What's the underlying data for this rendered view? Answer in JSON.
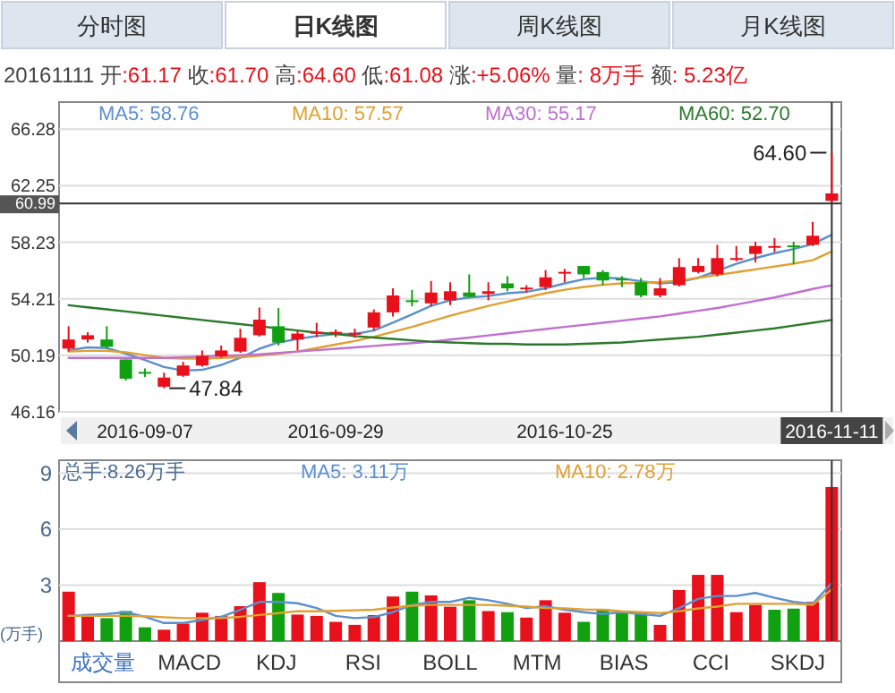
{
  "chart_data": [
    {
      "type": "candlestick",
      "title": "20161111 开:61.17 收:61.70 高:64.60 低:61.08 涨:+5.06% 量: 8万手 额: 5.23亿",
      "categories": [
        null,
        null,
        null,
        null,
        "2016-09-07",
        null,
        null,
        null,
        null,
        null,
        null,
        null,
        null,
        null,
        "2016-09-29",
        null,
        null,
        null,
        null,
        null,
        null,
        null,
        null,
        null,
        null,
        null,
        "2016-10-25",
        null,
        null,
        null,
        null,
        null,
        null,
        null,
        null,
        null,
        null,
        null,
        null,
        null,
        "2016-11-11"
      ],
      "ohlc": [
        [
          50.66,
          52.25,
          50.45,
          51.31
        ],
        [
          51.31,
          51.82,
          51.09,
          51.61
        ],
        [
          51.31,
          52.25,
          50.66,
          50.79
        ],
        [
          49.89,
          49.89,
          48.39,
          48.52
        ],
        [
          49.0,
          49.25,
          48.65,
          48.95
        ],
        [
          47.95,
          48.95,
          47.84,
          48.6
        ],
        [
          48.73,
          49.72,
          48.65,
          49.46
        ],
        [
          49.46,
          50.53,
          49.37,
          50.15
        ],
        [
          50.1,
          50.88,
          50.02,
          50.53
        ],
        [
          50.45,
          52.08,
          50.36,
          51.43
        ],
        [
          51.61,
          53.58,
          51.52,
          52.72
        ],
        [
          52.25,
          53.54,
          50.88,
          51.09
        ],
        [
          51.31,
          51.95,
          50.53,
          51.73
        ],
        [
          51.8,
          52.5,
          51.48,
          51.85
        ],
        [
          51.8,
          52.03,
          51.48,
          51.85
        ],
        [
          51.73,
          52.08,
          51.43,
          51.78
        ],
        [
          52.16,
          53.45,
          51.95,
          53.24
        ],
        [
          53.24,
          54.95,
          52.94,
          54.44
        ],
        [
          54.1,
          54.83,
          53.67,
          54.05
        ],
        [
          53.88,
          55.47,
          53.67,
          54.65
        ],
        [
          54.1,
          55.38,
          53.75,
          54.74
        ],
        [
          54.65,
          55.94,
          54.31,
          54.35
        ],
        [
          54.55,
          55.38,
          54.1,
          54.74
        ],
        [
          55.3,
          55.81,
          54.74,
          54.95
        ],
        [
          54.9,
          55.17,
          54.65,
          55.0
        ],
        [
          55.04,
          56.24,
          54.83,
          55.73
        ],
        [
          56.05,
          56.33,
          55.38,
          56.12
        ],
        [
          56.54,
          56.54,
          55.68,
          55.94
        ],
        [
          56.11,
          56.24,
          55.17,
          55.51
        ],
        [
          55.64,
          55.81,
          55.04,
          55.6
        ],
        [
          55.38,
          55.68,
          54.31,
          54.44
        ],
        [
          54.44,
          55.68,
          54.31,
          54.95
        ],
        [
          55.17,
          57.1,
          55.08,
          56.46
        ],
        [
          56.11,
          57.1,
          56.03,
          56.54
        ],
        [
          55.94,
          58.04,
          55.81,
          57.1
        ],
        [
          56.97,
          57.96,
          56.88,
          57.1
        ],
        [
          57.4,
          58.26,
          56.8,
          57.96
        ],
        [
          57.9,
          58.52,
          57.53,
          57.96
        ],
        [
          58.0,
          58.26,
          56.67,
          57.93
        ],
        [
          58.04,
          59.67,
          57.96,
          58.69
        ],
        [
          61.17,
          64.6,
          61.08,
          61.7
        ]
      ],
      "series": [
        {
          "type": "line",
          "name": "MA5: 58.76",
          "color": "#5b8fd0",
          "values": [
            50.55,
            50.75,
            50.7,
            50.3,
            49.85,
            49.35,
            49.1,
            49.15,
            49.5,
            50.0,
            50.65,
            51.1,
            51.35,
            51.55,
            51.7,
            51.7,
            51.95,
            52.5,
            53.1,
            53.7,
            54.1,
            54.3,
            54.4,
            54.6,
            54.7,
            54.95,
            55.3,
            55.6,
            55.7,
            55.65,
            55.45,
            55.3,
            55.4,
            55.7,
            56.2,
            56.7,
            57.1,
            57.45,
            57.75,
            58.1,
            58.76
          ]
        },
        {
          "type": "line",
          "name": "MA10: 57.57",
          "color": "#e0a030",
          "values": [
            50.45,
            50.5,
            50.5,
            50.4,
            50.2,
            50.0,
            49.95,
            49.95,
            50.0,
            50.05,
            50.15,
            50.3,
            50.45,
            50.7,
            50.95,
            51.2,
            51.5,
            51.85,
            52.2,
            52.6,
            53.0,
            53.35,
            53.7,
            54.0,
            54.3,
            54.6,
            54.85,
            55.05,
            55.2,
            55.3,
            55.35,
            55.4,
            55.5,
            55.7,
            55.9,
            56.1,
            56.3,
            56.5,
            56.7,
            56.95,
            57.57
          ]
        },
        {
          "type": "line",
          "name": "MA30: 55.17",
          "color": "#c070d0",
          "values": [
            50.0,
            50.0,
            50.0,
            50.0,
            50.0,
            50.0,
            50.05,
            50.1,
            50.15,
            50.2,
            50.25,
            50.35,
            50.45,
            50.55,
            50.65,
            50.75,
            50.85,
            50.95,
            51.05,
            51.15,
            51.3,
            51.45,
            51.6,
            51.75,
            51.9,
            52.05,
            52.2,
            52.35,
            52.5,
            52.65,
            52.8,
            52.95,
            53.15,
            53.35,
            53.55,
            53.8,
            54.05,
            54.3,
            54.6,
            54.9,
            55.17
          ]
        },
        {
          "type": "line",
          "name": "MA60: 52.70",
          "color": "#2a7a2a",
          "values": [
            53.75,
            53.6,
            53.45,
            53.3,
            53.15,
            53.0,
            52.85,
            52.7,
            52.55,
            52.4,
            52.25,
            52.1,
            51.95,
            51.8,
            51.7,
            51.55,
            51.45,
            51.35,
            51.25,
            51.15,
            51.1,
            51.05,
            51.0,
            51.0,
            50.95,
            50.95,
            50.95,
            51.0,
            51.05,
            51.1,
            51.2,
            51.3,
            51.4,
            51.5,
            51.65,
            51.8,
            51.95,
            52.1,
            52.3,
            52.5,
            52.7
          ]
        }
      ],
      "ylim": [
        46.16,
        68.2
      ],
      "yticks": [
        46.16,
        50.19,
        54.21,
        58.23,
        62.25,
        66.28
      ],
      "grid": "y",
      "legend": "top",
      "ref_lines": [
        {
          "axis": "y",
          "value": 60.99,
          "label": "60.99",
          "color": "#333333"
        },
        {
          "axis": "x",
          "value": "2016-11-11",
          "color": "#333333"
        }
      ],
      "annotations": [
        "分时图",
        "日K线图",
        "周K线图",
        "月K线图",
        {
          "text": "64.60",
          "x": "2016-11-11",
          "y": 64.6
        },
        "47.84"
      ]
    },
    {
      "type": "bar",
      "subtitle": "总手:8.26万手",
      "ylabel": "(万手)",
      "categories": [
        null,
        null,
        null,
        null,
        "2016-09-07",
        null,
        null,
        null,
        null,
        null,
        null,
        null,
        null,
        null,
        "2016-09-29",
        null,
        null,
        null,
        null,
        null,
        null,
        null,
        null,
        null,
        null,
        null,
        "2016-10-25",
        null,
        null,
        null,
        null,
        null,
        null,
        null,
        null,
        null,
        null,
        null,
        null,
        null,
        "2016-11-11"
      ],
      "series": [
        {
          "type": "bar",
          "values": [
            2.65,
            1.45,
            1.23,
            1.61,
            0.74,
            0.61,
            0.94,
            1.52,
            1.35,
            1.87,
            3.16,
            2.58,
            1.42,
            1.35,
            1.03,
            0.87,
            1.39,
            2.39,
            2.65,
            2.45,
            1.84,
            2.19,
            1.61,
            1.55,
            1.26,
            2.19,
            1.52,
            1.03,
            1.71,
            1.61,
            1.52,
            0.87,
            2.74,
            3.55,
            3.55,
            1.55,
            1.94,
            1.68,
            1.74,
            2.1,
            8.26
          ],
          "colors": [
            "#e8101a",
            "#e8101a",
            "#10a010",
            "#10a010",
            "#10a010",
            "#e8101a",
            "#e8101a",
            "#e8101a",
            "#e8101a",
            "#e8101a",
            "#e8101a",
            "#10a010",
            "#e8101a",
            "#e8101a",
            "#e8101a",
            "#e8101a",
            "#e8101a",
            "#e8101a",
            "#10a010",
            "#e8101a",
            "#e8101a",
            "#10a010",
            "#e8101a",
            "#10a010",
            "#e8101a",
            "#e8101a",
            "#e8101a",
            "#10a010",
            "#10a010",
            "#10a010",
            "#10a010",
            "#e8101a",
            "#e8101a",
            "#e8101a",
            "#e8101a",
            "#e8101a",
            "#e8101a",
            "#10a010",
            "#10a010",
            "#e8101a",
            "#e8101a"
          ]
        },
        {
          "type": "line",
          "name": "MA5: 3.11万",
          "color": "#5b8fd0",
          "values": [
            1.35,
            1.4,
            1.45,
            1.55,
            1.3,
            0.97,
            0.97,
            1.13,
            1.3,
            1.68,
            2.1,
            2.1,
            2.03,
            1.77,
            1.35,
            1.23,
            1.29,
            1.55,
            1.94,
            2.1,
            2.1,
            2.32,
            2.19,
            2.0,
            1.77,
            1.87,
            1.68,
            1.55,
            1.45,
            1.55,
            1.45,
            1.35,
            1.77,
            2.26,
            2.42,
            2.42,
            2.58,
            2.32,
            2.1,
            2.0,
            3.11
          ]
        },
        {
          "type": "line",
          "name": "MA10: 2.78万",
          "color": "#e0a030",
          "values": [
            1.35,
            1.35,
            1.35,
            1.35,
            1.33,
            1.28,
            1.23,
            1.23,
            1.23,
            1.3,
            1.4,
            1.5,
            1.6,
            1.6,
            1.62,
            1.65,
            1.68,
            1.8,
            1.9,
            1.94,
            1.94,
            1.94,
            1.94,
            1.9,
            1.85,
            1.77,
            1.75,
            1.7,
            1.68,
            1.6,
            1.55,
            1.5,
            1.6,
            1.75,
            1.85,
            2.0,
            2.0,
            2.0,
            2.0,
            1.94,
            2.78
          ]
        }
      ],
      "ylim": [
        0,
        9.7
      ],
      "yticks": [
        3,
        6,
        9
      ],
      "grid": "y",
      "legend": "top",
      "tick_labels": "y",
      "ref_lines": [
        {
          "axis": "x",
          "value": "2016-11-11",
          "color": "#333333"
        }
      ],
      "annotations": [
        "成交量",
        "MACD",
        "KDJ",
        "RSI",
        "BOLL",
        "MTM",
        "BIAS",
        "CCI",
        "SKDJ"
      ]
    }
  ]
}
